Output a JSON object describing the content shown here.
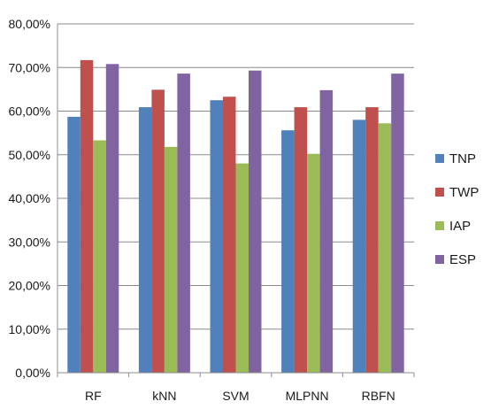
{
  "chart_data": {
    "type": "bar",
    "categories": [
      "RF",
      "kNN",
      "SVM",
      "MLPNN",
      "RBFN"
    ],
    "series": [
      {
        "name": "TNP",
        "color": "#4F81BD",
        "values": [
          58.7,
          60.9,
          62.5,
          55.6,
          58.0
        ]
      },
      {
        "name": "TWP",
        "color": "#C0504D",
        "values": [
          71.7,
          64.9,
          63.3,
          60.9,
          60.9
        ]
      },
      {
        "name": "IAP",
        "color": "#9BBB59",
        "values": [
          53.3,
          51.8,
          48.0,
          50.2,
          57.2
        ]
      },
      {
        "name": "ESP",
        "color": "#8064A2",
        "values": [
          70.8,
          68.6,
          69.3,
          64.8,
          68.6
        ]
      }
    ],
    "title": "",
    "xlabel": "",
    "ylabel": "",
    "ylim": [
      0,
      80
    ],
    "yticks": [
      "0,00%",
      "10,00%",
      "20,00%",
      "30,00%",
      "40,00%",
      "50,00%",
      "60,00%",
      "70,00%",
      "80,00%"
    ],
    "grid": true,
    "legend_position": "right"
  }
}
